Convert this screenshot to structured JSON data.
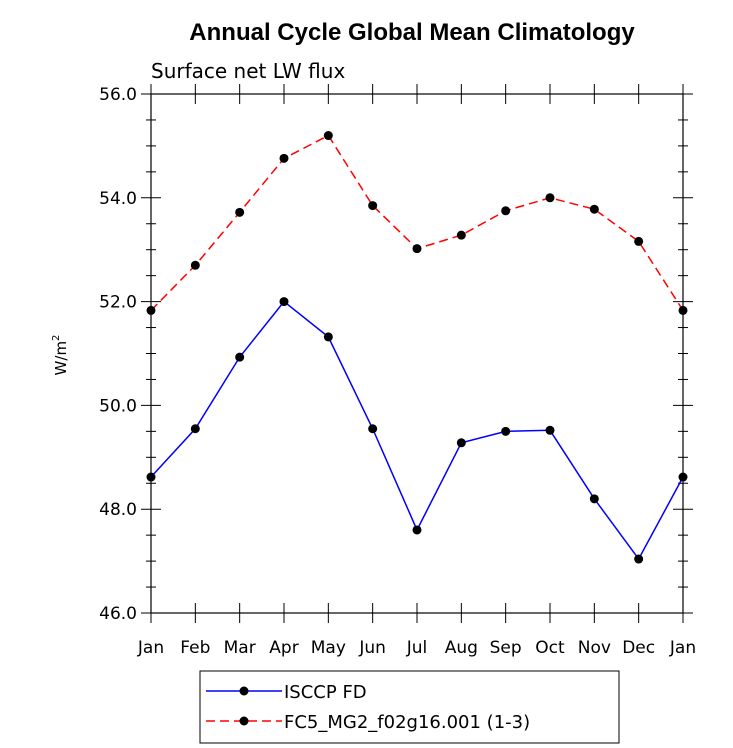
{
  "chart_data": {
    "type": "line",
    "title": "Annual Cycle Global Mean Climatology",
    "subtitle": "Surface net LW flux",
    "ylabel": "W/m",
    "ylabel_superscript": "2",
    "xlabel": "",
    "categories": [
      "Jan",
      "Feb",
      "Mar",
      "Apr",
      "May",
      "Jun",
      "Jul",
      "Aug",
      "Sep",
      "Oct",
      "Nov",
      "Dec",
      "Jan"
    ],
    "ylim": [
      46.0,
      56.0
    ],
    "yticks": [
      "46.0",
      "48.0",
      "50.0",
      "52.0",
      "54.0",
      "56.0"
    ],
    "grid": false,
    "legend_position": "bottom",
    "series": [
      {
        "name": "ISCCP FD",
        "color": "#0000ff",
        "dash": "solid",
        "values": [
          48.62,
          49.55,
          50.93,
          52.0,
          51.32,
          49.55,
          47.6,
          49.28,
          49.5,
          49.52,
          48.2,
          47.04,
          48.62
        ]
      },
      {
        "name": "FC5_MG2_f02g16.001 (1-3)",
        "color": "#ff0000",
        "dash": "dashed",
        "values": [
          51.83,
          52.7,
          53.72,
          54.76,
          55.2,
          53.85,
          53.02,
          53.28,
          53.75,
          54.0,
          53.78,
          53.16,
          51.83
        ]
      }
    ]
  }
}
